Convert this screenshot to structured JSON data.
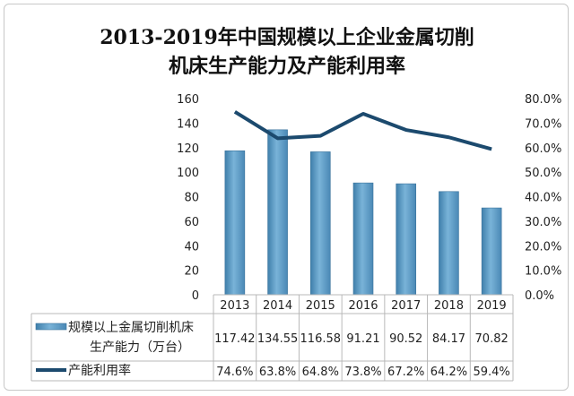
{
  "chart_data": {
    "type": "bar",
    "title_line1": "2013-2019年中国规模以上企业金属切削",
    "title_line2": "机床生产能力及产能利用率",
    "categories": [
      "2013",
      "2014",
      "2015",
      "2016",
      "2017",
      "2018",
      "2019"
    ],
    "series": [
      {
        "name": "规模以上金属切削机床生产能力（万台）",
        "name_line1": "规模以上金属切削机床",
        "name_line2": "生产能力（万台）",
        "type": "bar",
        "axis": "left",
        "color": "#5a9ac4",
        "values": [
          117.42,
          134.55,
          116.58,
          91.21,
          90.52,
          84.17,
          70.82
        ],
        "labels": [
          "117.42",
          "134.55",
          "116.58",
          "91.21",
          "90.52",
          "84.17",
          "70.82"
        ]
      },
      {
        "name": "产能利用率",
        "type": "line",
        "axis": "right",
        "color": "#1c4a6e",
        "values": [
          74.6,
          63.8,
          64.8,
          73.8,
          67.2,
          64.2,
          59.4
        ],
        "labels": [
          "74.6%",
          "63.8%",
          "64.8%",
          "73.8%",
          "67.2%",
          "64.2%",
          "59.4%"
        ]
      }
    ],
    "ylim": [
      0,
      160
    ],
    "y_ticks": [
      "0",
      "20",
      "40",
      "60",
      "80",
      "100",
      "120",
      "140",
      "160"
    ],
    "y2lim": [
      0,
      80
    ],
    "y2_ticks": [
      "0.0%",
      "10.0%",
      "20.0%",
      "30.0%",
      "40.0%",
      "50.0%",
      "60.0%",
      "70.0%",
      "80.0%"
    ],
    "grid": false,
    "legend": "data-table"
  }
}
